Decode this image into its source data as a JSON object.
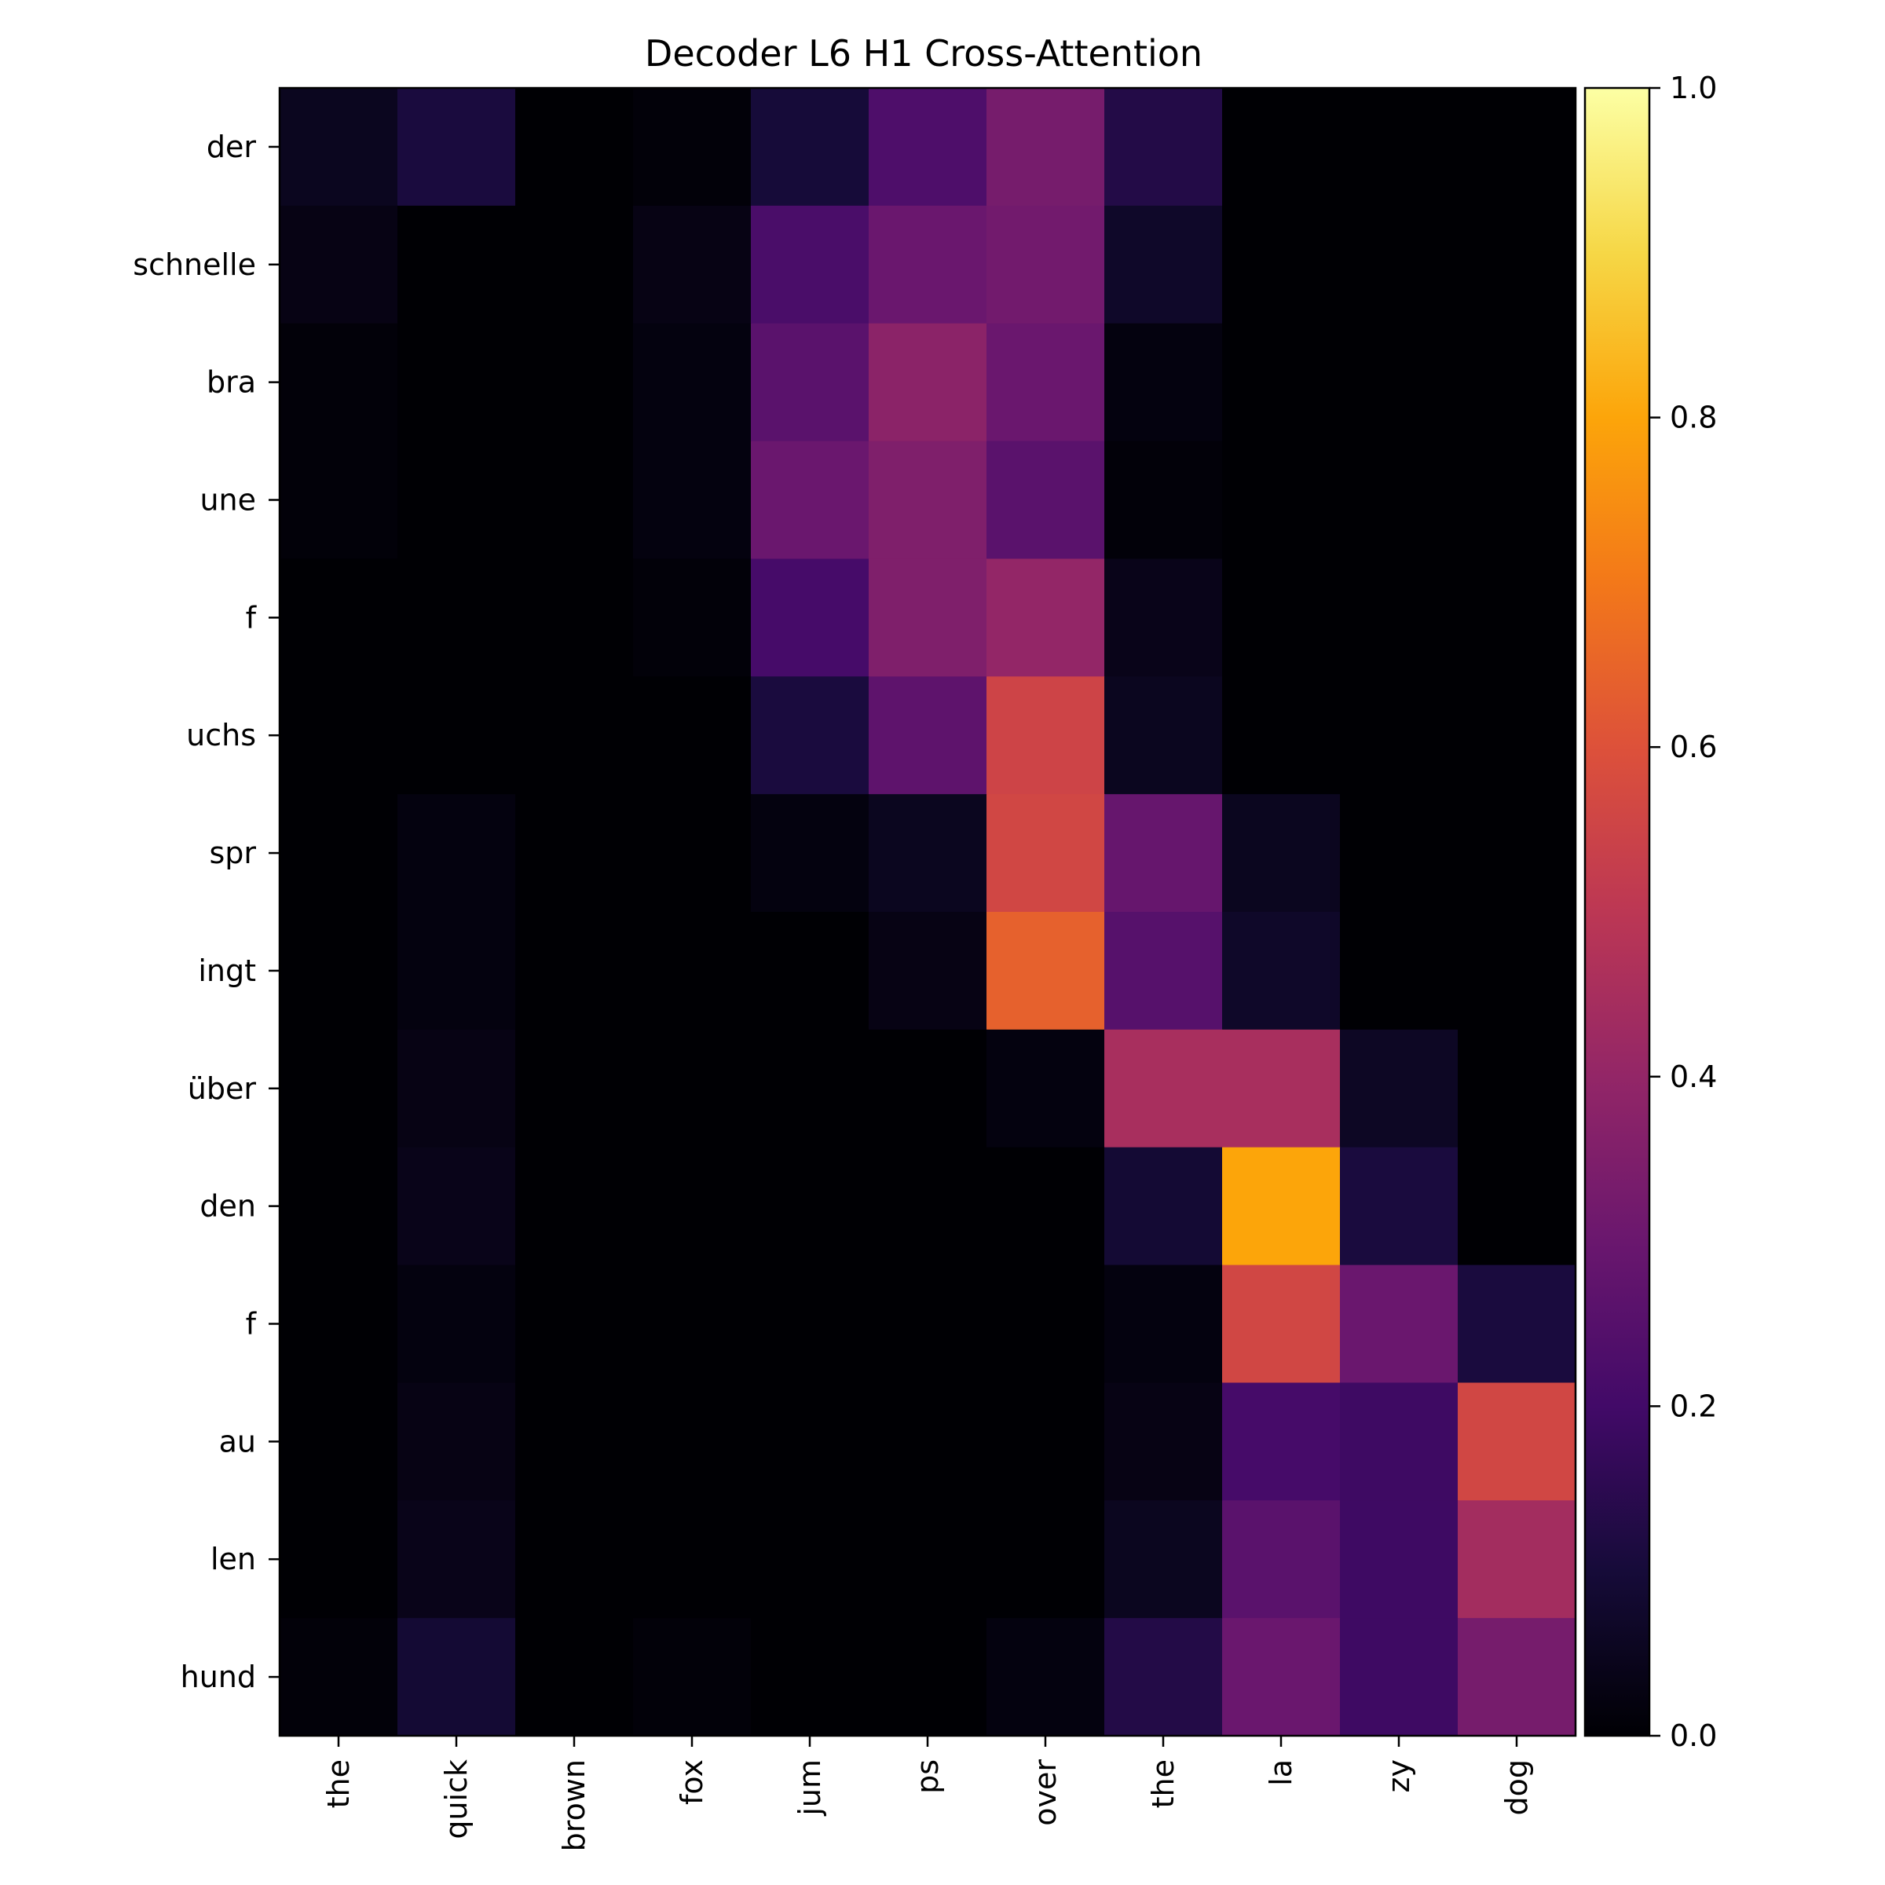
{
  "chart_data": {
    "type": "heatmap",
    "title": "Decoder L6 H1 Cross-Attention",
    "x_labels": [
      "the",
      "quick",
      "brown",
      "fox",
      "jum",
      "ps",
      "over",
      "the",
      "la",
      "zy",
      "dog"
    ],
    "y_labels": [
      "der",
      "schnelle",
      "bra",
      "une",
      "f",
      "uchs",
      "spr",
      "ingt",
      "über",
      "den",
      "f",
      "au",
      "len",
      "hund"
    ],
    "values": [
      [
        0.05,
        0.11,
        0.0,
        0.01,
        0.1,
        0.23,
        0.33,
        0.13,
        0.0,
        0.0,
        0.0
      ],
      [
        0.03,
        0.0,
        0.0,
        0.03,
        0.22,
        0.3,
        0.32,
        0.07,
        0.0,
        0.0,
        0.0
      ],
      [
        0.01,
        0.0,
        0.0,
        0.02,
        0.26,
        0.38,
        0.3,
        0.02,
        0.0,
        0.0,
        0.0
      ],
      [
        0.01,
        0.0,
        0.0,
        0.02,
        0.3,
        0.35,
        0.26,
        0.01,
        0.0,
        0.0,
        0.0
      ],
      [
        0.0,
        0.0,
        0.0,
        0.01,
        0.21,
        0.35,
        0.4,
        0.04,
        0.0,
        0.0,
        0.0
      ],
      [
        0.0,
        0.0,
        0.0,
        0.0,
        0.11,
        0.27,
        0.55,
        0.05,
        0.0,
        0.0,
        0.0
      ],
      [
        0.0,
        0.02,
        0.0,
        0.0,
        0.02,
        0.05,
        0.56,
        0.29,
        0.05,
        0.0,
        0.0
      ],
      [
        0.0,
        0.02,
        0.0,
        0.0,
        0.0,
        0.03,
        0.64,
        0.25,
        0.07,
        0.0,
        0.0
      ],
      [
        0.0,
        0.03,
        0.0,
        0.0,
        0.0,
        0.0,
        0.02,
        0.45,
        0.45,
        0.06,
        0.0
      ],
      [
        0.0,
        0.04,
        0.0,
        0.0,
        0.0,
        0.0,
        0.0,
        0.09,
        0.8,
        0.11,
        0.0
      ],
      [
        0.0,
        0.02,
        0.0,
        0.0,
        0.0,
        0.0,
        0.0,
        0.02,
        0.56,
        0.3,
        0.11
      ],
      [
        0.0,
        0.03,
        0.0,
        0.0,
        0.0,
        0.0,
        0.0,
        0.03,
        0.21,
        0.19,
        0.56
      ],
      [
        0.0,
        0.04,
        0.0,
        0.0,
        0.0,
        0.0,
        0.0,
        0.05,
        0.26,
        0.19,
        0.44
      ],
      [
        0.01,
        0.09,
        0.0,
        0.01,
        0.0,
        0.0,
        0.02,
        0.13,
        0.3,
        0.19,
        0.33
      ]
    ],
    "colormap": "inferno",
    "colorbar": {
      "range": [
        0.0,
        1.0
      ],
      "ticks": [
        "0.0",
        "0.2",
        "0.4",
        "0.6",
        "0.8",
        "1.0"
      ]
    },
    "xlabel": "",
    "ylabel": ""
  }
}
